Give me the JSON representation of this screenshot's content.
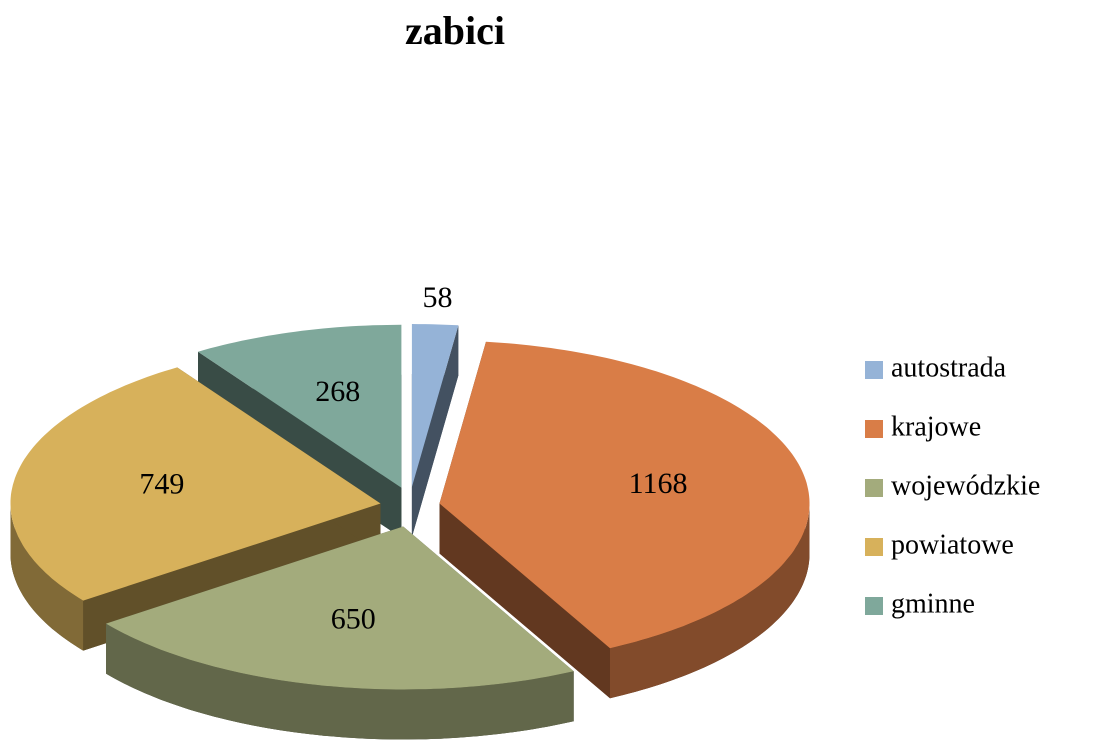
{
  "chart_data": {
    "type": "pie",
    "title": "zabici",
    "categories": [
      "autostrada",
      "krajowe",
      "wojewódzkie",
      "powiatowe",
      "gminne"
    ],
    "values": [
      58,
      1168,
      650,
      749,
      268
    ],
    "colors": [
      "#95b3d7",
      "#d97d47",
      "#a3ab7c",
      "#d7b15b",
      "#7fa89b"
    ],
    "legend": "right"
  }
}
